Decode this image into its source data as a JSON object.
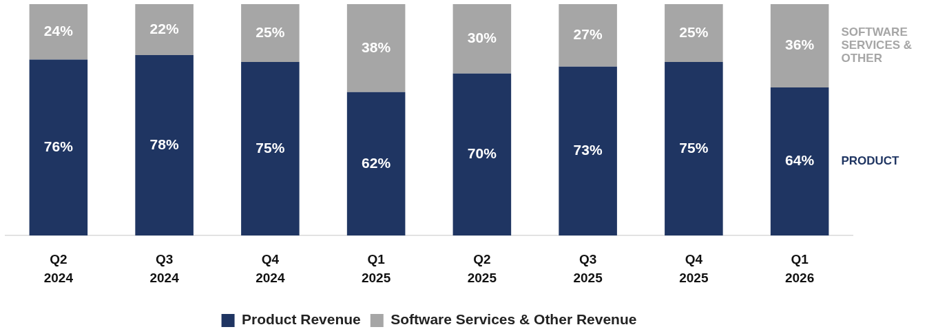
{
  "chart_data": {
    "type": "bar",
    "stacked": true,
    "categories": [
      "Q2 2024",
      "Q3 2024",
      "Q4 2024",
      "Q1 2025",
      "Q2 2025",
      "Q3 2025",
      "Q4 2025",
      "Q1 2026"
    ],
    "series": [
      {
        "name": "Product Revenue",
        "color": "#1f3562",
        "values": [
          76,
          78,
          75,
          62,
          70,
          73,
          75,
          64
        ],
        "value_labels": [
          "76%",
          "78%",
          "75%",
          "62%",
          "70%",
          "73%",
          "75%",
          "64%"
        ]
      },
      {
        "name": "Software Services & Other Revenue",
        "color": "#a6a6a6",
        "values": [
          24,
          22,
          25,
          38,
          30,
          27,
          25,
          36
        ],
        "value_labels": [
          "24%",
          "22%",
          "25%",
          "38%",
          "30%",
          "27%",
          "25%",
          "36%"
        ]
      }
    ],
    "tick_labels": "x",
    "legend": "bottom",
    "grid": false,
    "annotations": [
      "SOFTWARE SERVICES & OTHER",
      "PRODUCT"
    ]
  }
}
